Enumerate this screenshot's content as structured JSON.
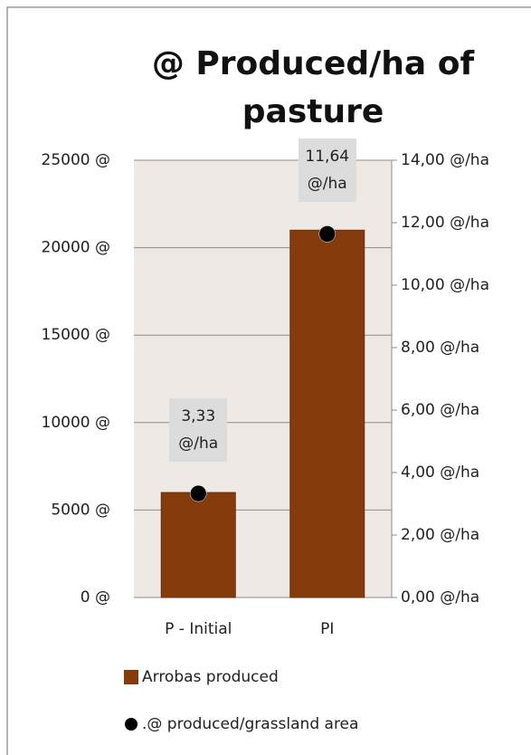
{
  "chart_data": {
    "type": "bar",
    "title": "@ Produced/ha of pasture",
    "categories": [
      "P - Initial",
      "PI"
    ],
    "series": [
      {
        "name": "Arrobas produced",
        "type": "bar",
        "color": "#843c0c",
        "values": [
          6000,
          21000
        ]
      },
      {
        "name": ".@ produced/grassland area",
        "type": "scatter",
        "axis": "y2",
        "color": "#000000",
        "values": [
          3.33,
          11.64
        ],
        "value_labels": [
          "3,33 @/ha",
          "11,64 @/ha"
        ]
      }
    ],
    "ylim": [
      0,
      25000
    ],
    "yticks": [
      {
        "value": 0,
        "label": "0 @"
      },
      {
        "value": 5000,
        "label": "5000 @"
      },
      {
        "value": 10000,
        "label": "10000 @"
      },
      {
        "value": 15000,
        "label": "15000 @"
      },
      {
        "value": 20000,
        "label": "20000 @"
      },
      {
        "value": 25000,
        "label": "25000 @"
      }
    ],
    "y2lim": [
      0,
      14
    ],
    "y2ticks": [
      {
        "value": 0,
        "label": "0,00 @/ha"
      },
      {
        "value": 2,
        "label": "2,00 @/ha"
      },
      {
        "value": 4,
        "label": "4,00 @/ha"
      },
      {
        "value": 6,
        "label": "6,00 @/ha"
      },
      {
        "value": 8,
        "label": "8,00 @/ha"
      },
      {
        "value": 10,
        "label": "10,00 @/ha"
      },
      {
        "value": 12,
        "label": "12,00 @/ha"
      },
      {
        "value": 14,
        "label": "14,00 @/ha"
      }
    ],
    "grid": true,
    "legend": "bottom"
  }
}
